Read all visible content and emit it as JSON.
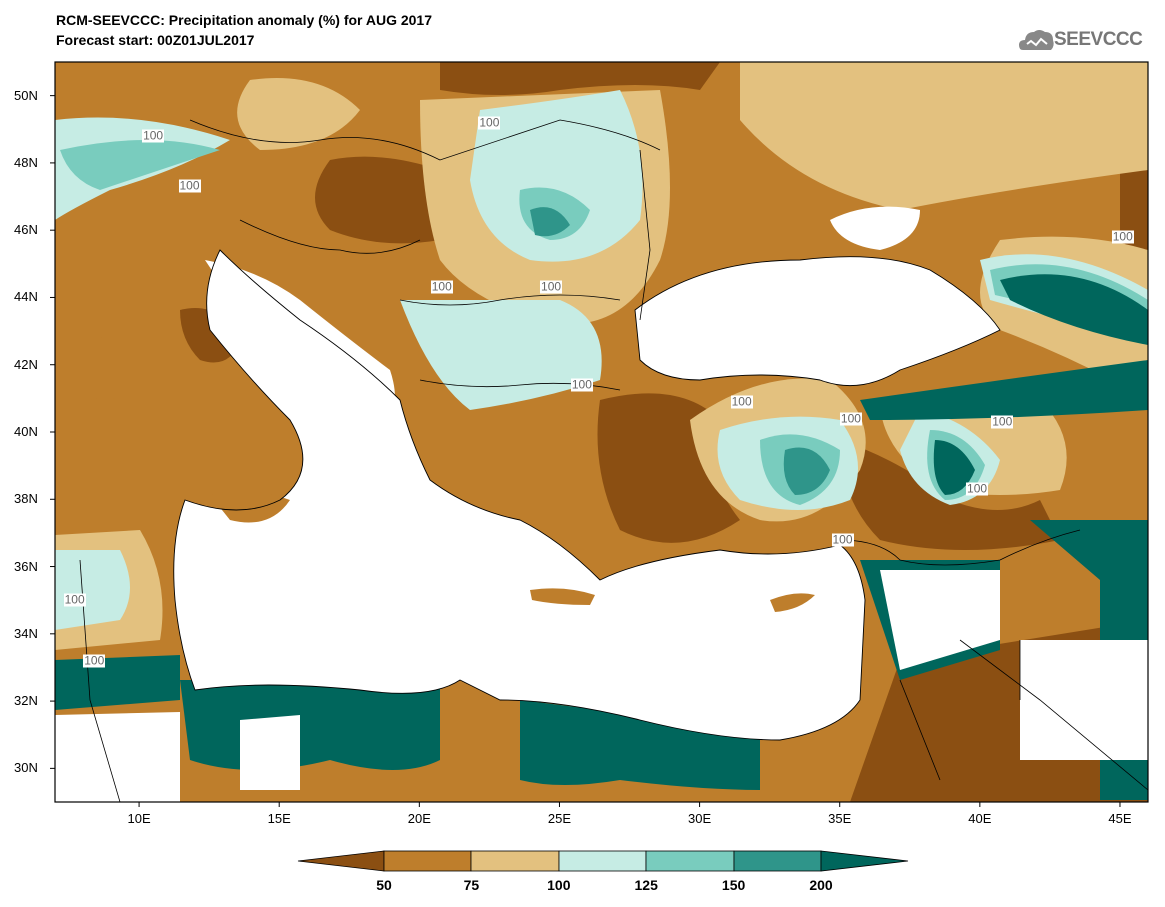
{
  "header": {
    "title": "RCM-SEEVCCC: Precipitation anomaly (%) for AUG 2017",
    "subtitle": "Forecast start: 00Z01JUL2017",
    "logo_text": "SEEVCCC"
  },
  "map": {
    "variable": "Precipitation anomaly (%)",
    "extent": {
      "lon": [
        7,
        46
      ],
      "lat": [
        29,
        51
      ]
    },
    "lat_ticks": [
      "50N",
      "48N",
      "46N",
      "44N",
      "42N",
      "40N",
      "38N",
      "36N",
      "34N",
      "32N",
      "30N"
    ],
    "lon_ticks": [
      "10E",
      "15E",
      "20E",
      "25E",
      "30E",
      "35E",
      "40E",
      "45E"
    ],
    "contour_label_text": "100",
    "contour_labels": [
      {
        "lon": 10.5,
        "lat": 48.8
      },
      {
        "lon": 11.8,
        "lat": 47.3
      },
      {
        "lon": 22.5,
        "lat": 49.2
      },
      {
        "lon": 20.8,
        "lat": 44.3
      },
      {
        "lon": 24.7,
        "lat": 44.3
      },
      {
        "lon": 25.8,
        "lat": 41.4
      },
      {
        "lon": 31.5,
        "lat": 40.9
      },
      {
        "lon": 35.4,
        "lat": 40.4
      },
      {
        "lon": 40.8,
        "lat": 40.3
      },
      {
        "lon": 39.9,
        "lat": 38.3
      },
      {
        "lon": 35.1,
        "lat": 36.8
      },
      {
        "lon": 45.1,
        "lat": 45.8
      },
      {
        "lon": 7.7,
        "lat": 35.0
      },
      {
        "lon": 8.4,
        "lat": 33.2
      }
    ]
  },
  "colorbar": {
    "levels": [
      "50",
      "75",
      "100",
      "125",
      "150",
      "200"
    ],
    "colors": [
      "#8b4f12",
      "#be7e2c",
      "#e3c17f",
      "#c6ece4",
      "#79ccbe",
      "#2f958a",
      "#00665c"
    ]
  }
}
